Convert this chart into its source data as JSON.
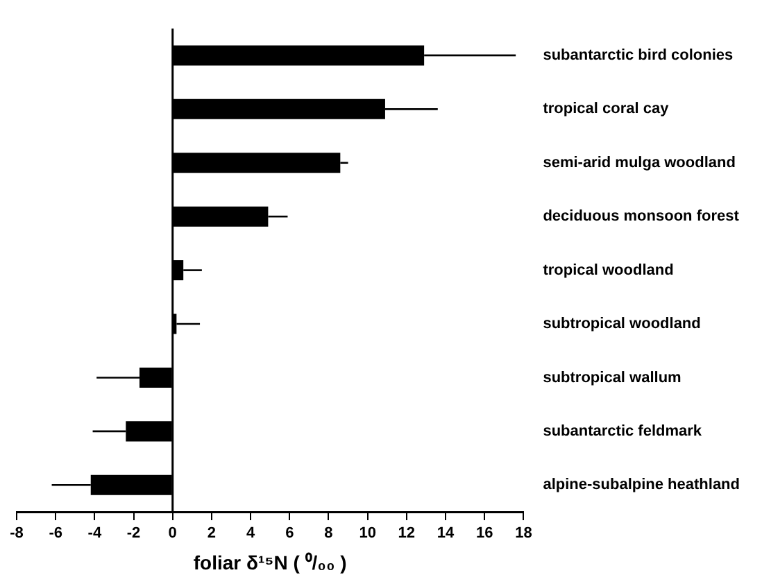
{
  "chart_data": {
    "type": "bar",
    "orientation": "horizontal",
    "categories": [
      "subantarctic bird colonies",
      "tropical coral cay",
      "semi-arid mulga woodland",
      "deciduous monsoon forest",
      "tropical woodland",
      "subtropical woodland",
      "subtropical wallum",
      "subantarctic feldmark",
      "alpine-subalpine heathland"
    ],
    "values": [
      12.9,
      10.9,
      8.6,
      4.9,
      0.55,
      0.2,
      -1.7,
      -2.4,
      -4.2
    ],
    "errors": [
      [
        12.9,
        17.6
      ],
      [
        10.9,
        13.6
      ],
      [
        8.6,
        9.0
      ],
      [
        4.9,
        5.9
      ],
      [
        0.55,
        1.5
      ],
      [
        0.2,
        1.4
      ],
      [
        -3.9,
        -1.7
      ],
      [
        -4.1,
        -2.4
      ],
      [
        -6.2,
        -4.2
      ]
    ],
    "color": "#000000",
    "xlabel": "foliar δ¹⁵N ( ⁰/₀₀ )",
    "xlim": [
      -8,
      18
    ],
    "xticks": [
      -8,
      -6,
      -4,
      -2,
      0,
      2,
      4,
      6,
      8,
      10,
      12,
      14,
      16,
      18
    ],
    "ref_lines": [
      {
        "axis": "x",
        "value": 0
      }
    ],
    "grid": false,
    "legend": false
  }
}
